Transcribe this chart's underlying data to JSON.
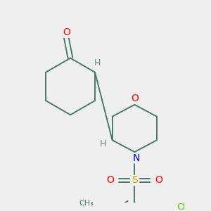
{
  "background_color": "#efefef",
  "bond_color": "#4a7a6a",
  "atom_colors": {
    "O": "#ff0000",
    "N": "#0000cc",
    "S": "#ccaa00",
    "Cl": "#55cc00",
    "H": "#6a8a7a",
    "C": "#4a7a6a"
  },
  "figsize": [
    3.0,
    3.0
  ],
  "dpi": 100
}
